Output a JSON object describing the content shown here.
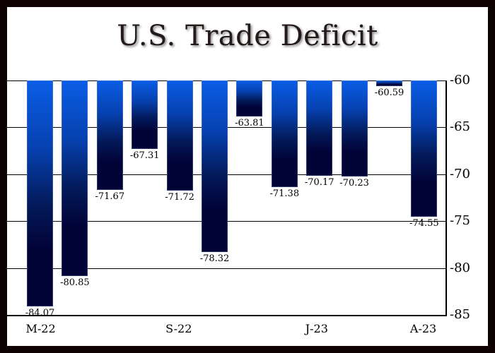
{
  "chart_data": {
    "type": "bar",
    "title": "U.S. Trade Deficit",
    "xlabel": "",
    "ylabel": "",
    "ylim": [
      -85,
      -60
    ],
    "yticks": [
      "-60",
      "-65",
      "-70",
      "-75",
      "-80",
      "-85"
    ],
    "grid": true,
    "y_axis_position": "right",
    "categories": [
      "M-22",
      "",
      "",
      "",
      "S-22",
      "",
      "",
      "",
      "J-23",
      "",
      "",
      "A-23"
    ],
    "values": [
      -84.07,
      -80.85,
      -71.67,
      -67.31,
      -71.72,
      -78.32,
      -63.81,
      -71.38,
      -70.17,
      -70.23,
      -60.59,
      -74.55
    ],
    "value_labels": [
      "-84.07",
      "-80.85",
      "-71.67",
      "-67.31",
      "-71.72",
      "-78.32",
      "-63.81",
      "-71.38",
      "-70.17",
      "-70.23",
      "-60.59",
      "-74.55"
    ],
    "x_tick_labels": [
      {
        "index": 0,
        "label": "M-22"
      },
      {
        "index": 4,
        "label": "S-22"
      },
      {
        "index": 8,
        "label": "J-23"
      },
      {
        "index": 11,
        "label": "A-23"
      }
    ],
    "colors": {
      "bar_top": "#0a5de6",
      "bar_bottom": "#010236",
      "frame": "#0d0102"
    }
  }
}
